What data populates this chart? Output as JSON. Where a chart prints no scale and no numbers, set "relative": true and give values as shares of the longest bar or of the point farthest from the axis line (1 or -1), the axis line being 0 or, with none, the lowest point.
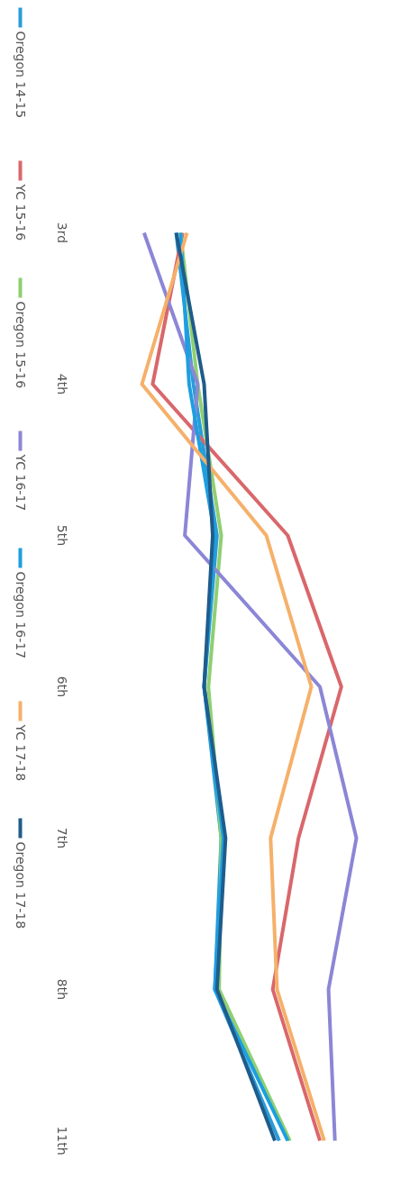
{
  "chart_data": {
    "type": "line",
    "orientation": "horizontal",
    "relative": true,
    "legend": "left",
    "grid": false,
    "marker": "none",
    "line_style": "solid",
    "categories": [
      "3rd",
      "4th",
      "5th",
      "6th",
      "7th",
      "8th",
      "11th"
    ],
    "series": [
      {
        "name": "Oregon 14-15",
        "color": "#2b9bd8",
        "values": [
          0.16,
          0.24,
          0.35,
          0.29,
          0.37,
          0.34,
          0.64
        ]
      },
      {
        "name": "YC 15-16",
        "color": "#d9676b",
        "values": [
          0.19,
          0.05,
          0.68,
          0.93,
          0.73,
          0.61,
          0.83
        ]
      },
      {
        "name": "Oregon 15-16",
        "color": "#8fcf72",
        "values": [
          0.18,
          0.26,
          0.37,
          0.31,
          0.37,
          0.36,
          0.69
        ]
      },
      {
        "name": "YC 16-17",
        "color": "#8b86d6",
        "values": [
          0.01,
          0.26,
          0.2,
          0.83,
          1,
          0.87,
          0.9
        ]
      },
      {
        "name": "Oregon 16-17",
        "color": "#1c9fe0",
        "values": [
          0.18,
          0.22,
          0.34,
          0.29,
          0.38,
          0.34,
          0.68
        ]
      },
      {
        "name": "YC 17-18",
        "color": "#f5b06a",
        "values": [
          0.21,
          0,
          0.58,
          0.79,
          0.6,
          0.63,
          0.85
        ]
      },
      {
        "name": "Oregon 17-18",
        "color": "#1f5c8c",
        "values": [
          0.16,
          0.29,
          0.33,
          0.29,
          0.39,
          0.35,
          0.62
        ]
      }
    ]
  }
}
